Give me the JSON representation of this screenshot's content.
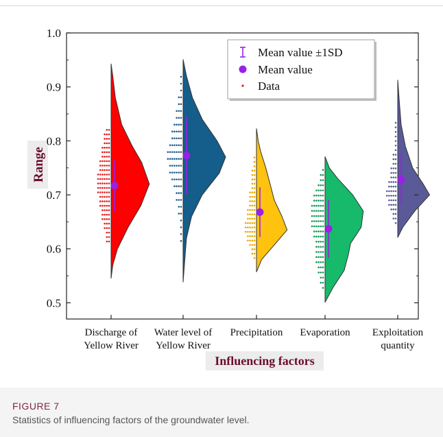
{
  "figure": {
    "label": "FIGURE 7",
    "caption": "Statistics of influencing factors of the groundwater level."
  },
  "chart_data": {
    "type": "violin",
    "title": "",
    "xlabel": "Influencing factors",
    "ylabel": "Range",
    "ylim": [
      0.47,
      1.0
    ],
    "yticks": [
      0.5,
      0.6,
      0.7,
      0.8,
      0.9,
      1.0
    ],
    "ytick_labels": [
      "0.5",
      "0.6",
      "0.7",
      "0.8",
      "0.9",
      "1.0"
    ],
    "legend": {
      "position": "top-right",
      "entries": [
        "Mean value  ±1SD",
        "Mean value",
        "Data"
      ]
    },
    "colors": {
      "error_bar": "#9b1fe8",
      "mean_marker": "#9b1fe8",
      "data_points": "#e01b1b",
      "axis_label_text": "#6b0d2a"
    },
    "series": [
      {
        "label_lines": [
          "Discharge of",
          "Yellow River"
        ],
        "mean": 0.717,
        "sd": 0.047,
        "min": 0.545,
        "max": 0.943,
        "color": "#ff0000",
        "dot_color": "#e01b1b",
        "profile": [
          [
            0.545,
            0
          ],
          [
            0.57,
            0.04
          ],
          [
            0.6,
            0.15
          ],
          [
            0.64,
            0.4
          ],
          [
            0.68,
            0.7
          ],
          [
            0.72,
            0.9
          ],
          [
            0.76,
            0.72
          ],
          [
            0.79,
            0.5
          ],
          [
            0.83,
            0.25
          ],
          [
            0.88,
            0.1
          ],
          [
            0.92,
            0.04
          ],
          [
            0.943,
            0
          ]
        ]
      },
      {
        "label_lines": [
          "Water level of",
          "Yellow River"
        ],
        "mean": 0.773,
        "sd": 0.072,
        "min": 0.538,
        "max": 0.951,
        "color": "#155d8a",
        "dot_color": "#1f5f8c",
        "profile": [
          [
            0.538,
            0
          ],
          [
            0.58,
            0.04
          ],
          [
            0.62,
            0.08
          ],
          [
            0.66,
            0.2
          ],
          [
            0.7,
            0.45
          ],
          [
            0.74,
            0.85
          ],
          [
            0.77,
            1.0
          ],
          [
            0.8,
            0.8
          ],
          [
            0.84,
            0.45
          ],
          [
            0.88,
            0.22
          ],
          [
            0.92,
            0.08
          ],
          [
            0.951,
            0
          ]
        ]
      },
      {
        "label_lines": [
          "Precipitation"
        ],
        "mean": 0.668,
        "sd": 0.046,
        "min": 0.557,
        "max": 0.823,
        "color": "#ffc20e",
        "dot_color": "#e6a800",
        "profile": [
          [
            0.557,
            0
          ],
          [
            0.58,
            0.12
          ],
          [
            0.61,
            0.45
          ],
          [
            0.635,
            0.72
          ],
          [
            0.66,
            0.6
          ],
          [
            0.69,
            0.42
          ],
          [
            0.72,
            0.32
          ],
          [
            0.75,
            0.22
          ],
          [
            0.78,
            0.1
          ],
          [
            0.8,
            0.04
          ],
          [
            0.823,
            0
          ]
        ]
      },
      {
        "label_lines": [
          "Evaporation"
        ],
        "mean": 0.637,
        "sd": 0.054,
        "min": 0.501,
        "max": 0.771,
        "color": "#17b96a",
        "dot_color": "#0f9a55",
        "profile": [
          [
            0.501,
            0
          ],
          [
            0.53,
            0.2
          ],
          [
            0.56,
            0.45
          ],
          [
            0.59,
            0.55
          ],
          [
            0.61,
            0.6
          ],
          [
            0.64,
            0.85
          ],
          [
            0.67,
            0.9
          ],
          [
            0.7,
            0.65
          ],
          [
            0.73,
            0.3
          ],
          [
            0.75,
            0.1
          ],
          [
            0.771,
            0
          ]
        ]
      },
      {
        "label_lines": [
          "Exploitation",
          "quantity"
        ],
        "mean": 0.728,
        "sd": 0.048,
        "min": 0.621,
        "max": 0.913,
        "color": "#5a5a99",
        "dot_color": "#5a5a99",
        "profile": [
          [
            0.621,
            0
          ],
          [
            0.64,
            0.12
          ],
          [
            0.67,
            0.4
          ],
          [
            0.7,
            0.75
          ],
          [
            0.72,
            0.6
          ],
          [
            0.75,
            0.35
          ],
          [
            0.79,
            0.18
          ],
          [
            0.83,
            0.08
          ],
          [
            0.87,
            0.04
          ],
          [
            0.913,
            0
          ]
        ]
      }
    ]
  }
}
